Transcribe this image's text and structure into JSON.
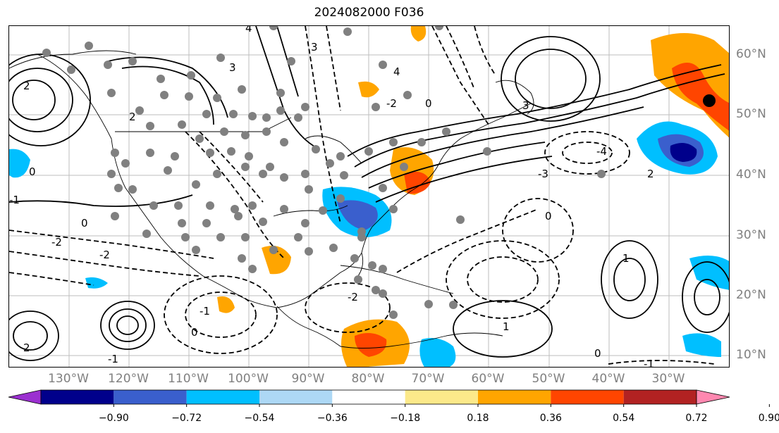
{
  "title": "2024082000 F036",
  "map": {
    "lon_labels": [
      "130°W",
      "120°W",
      "110°W",
      "100°W",
      "90°W",
      "80°W",
      "70°W",
      "60°W",
      "50°W",
      "40°W",
      "30°W"
    ],
    "lat_labels": [
      "60°N",
      "50°N",
      "40°N",
      "30°N",
      "20°N",
      "10°N"
    ],
    "contour_labels": [
      "4",
      "3",
      "2",
      "1",
      "0",
      "-1",
      "-2",
      "-3",
      "-4"
    ],
    "station_marker": "gray-dot",
    "highlight_marker": "black-dot"
  },
  "colorbar": {
    "ticks": [
      "−0.90",
      "−0.72",
      "−0.54",
      "−0.36",
      "−0.18",
      "0.18",
      "0.36",
      "0.54",
      "0.72",
      "0.90"
    ],
    "colors": [
      "#9b30d0",
      "#00008b",
      "#3a5fcd",
      "#00bfff",
      "#add8f5",
      "#ffffff",
      "#fce98a",
      "#ffa500",
      "#ff4500",
      "#b22222",
      "#ff88b0"
    ]
  }
}
